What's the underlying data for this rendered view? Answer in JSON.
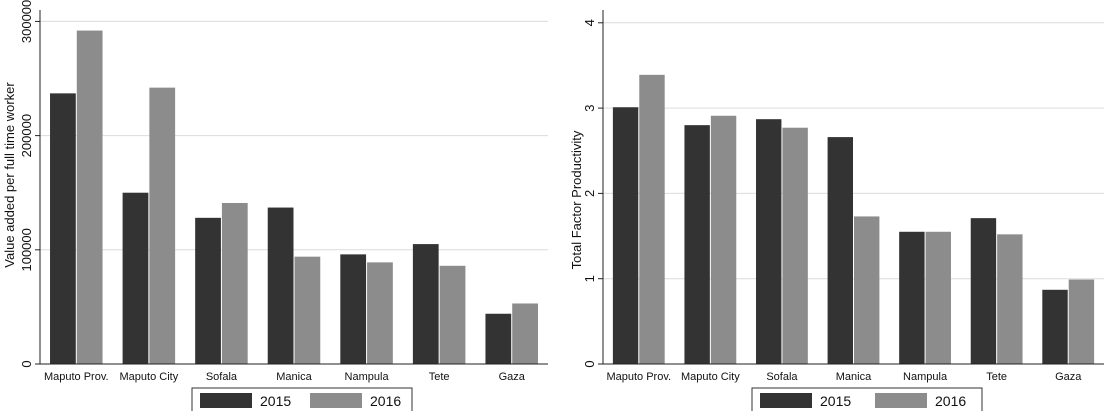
{
  "chart_data": [
    {
      "type": "bar",
      "title": "",
      "xlabel": "",
      "ylabel": "Value added per full time worker",
      "categories": [
        "Maputo Prov.",
        "Maputo City",
        "Sofala",
        "Manica",
        "Nampula",
        "Tete",
        "Gaza"
      ],
      "series": [
        {
          "name": "2015",
          "color": "#333333",
          "values": [
            237000,
            150000,
            128000,
            137000,
            96000,
            105000,
            44000
          ]
        },
        {
          "name": "2016",
          "color": "#8c8c8c",
          "values": [
            292000,
            242000,
            141000,
            94000,
            89000,
            86000,
            53000
          ]
        }
      ],
      "yticks": [
        0,
        100000,
        200000,
        300000
      ],
      "ytick_labels": [
        "0",
        "100000",
        "200000",
        "300000"
      ],
      "ylim": [
        0,
        310000
      ],
      "grid": true,
      "legend": "bottom"
    },
    {
      "type": "bar",
      "title": "",
      "xlabel": "",
      "ylabel": "Total Factor Productivity",
      "categories": [
        "Maputo Prov.",
        "Maputo City",
        "Sofala",
        "Manica",
        "Nampula",
        "Tete",
        "Gaza"
      ],
      "series": [
        {
          "name": "2015",
          "color": "#333333",
          "values": [
            3.01,
            2.8,
            2.87,
            2.66,
            1.55,
            1.71,
            0.87
          ]
        },
        {
          "name": "2016",
          "color": "#8c8c8c",
          "values": [
            3.39,
            2.91,
            2.77,
            1.73,
            1.55,
            1.52,
            0.99
          ]
        }
      ],
      "yticks": [
        0,
        1,
        2,
        3,
        4
      ],
      "ytick_labels": [
        "0",
        "1",
        "2",
        "3",
        "4"
      ],
      "ylim": [
        0,
        4.15
      ],
      "grid": true,
      "legend": "bottom"
    }
  ]
}
